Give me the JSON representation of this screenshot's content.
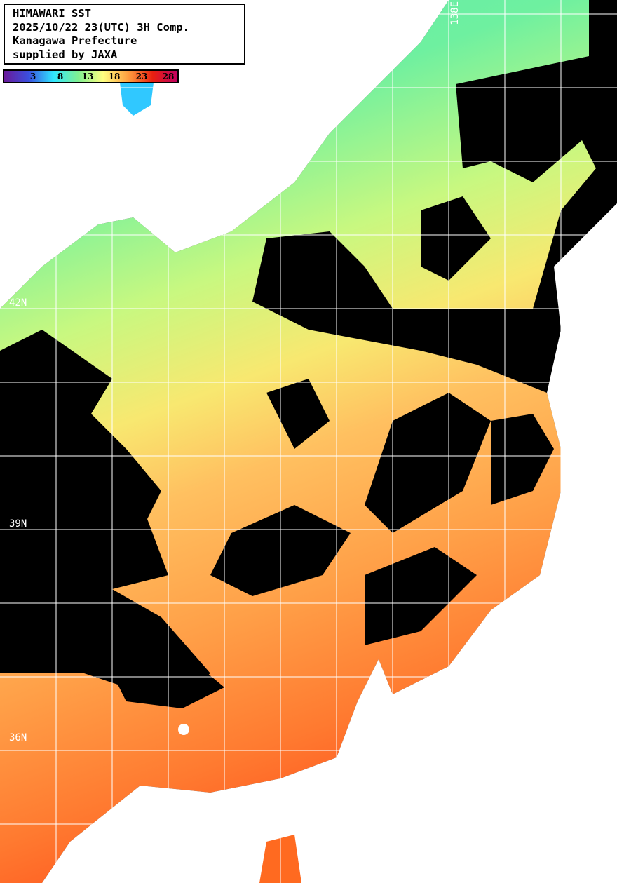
{
  "header": {
    "lines": [
      "HIMAWARI SST",
      "2025/10/22 23(UTC) 3H Comp.",
      "Kanagawa Prefecture",
      "supplied by JAXA"
    ]
  },
  "colorbar": {
    "ticks": [
      "3",
      "8",
      "13",
      "18",
      "23",
      "28"
    ],
    "colors": [
      "#6a1a9a",
      "#3a50e0",
      "#30e8ff",
      "#80f090",
      "#ffff80",
      "#ffa040",
      "#e82010",
      "#c00060"
    ]
  },
  "grid": {
    "lat_labels": [
      "42N",
      "39N",
      "36N"
    ],
    "lon_labels": [
      "138E"
    ]
  },
  "colors": {
    "cloud": "#000000",
    "land": "#ffffff",
    "grid": "#ffffff"
  }
}
